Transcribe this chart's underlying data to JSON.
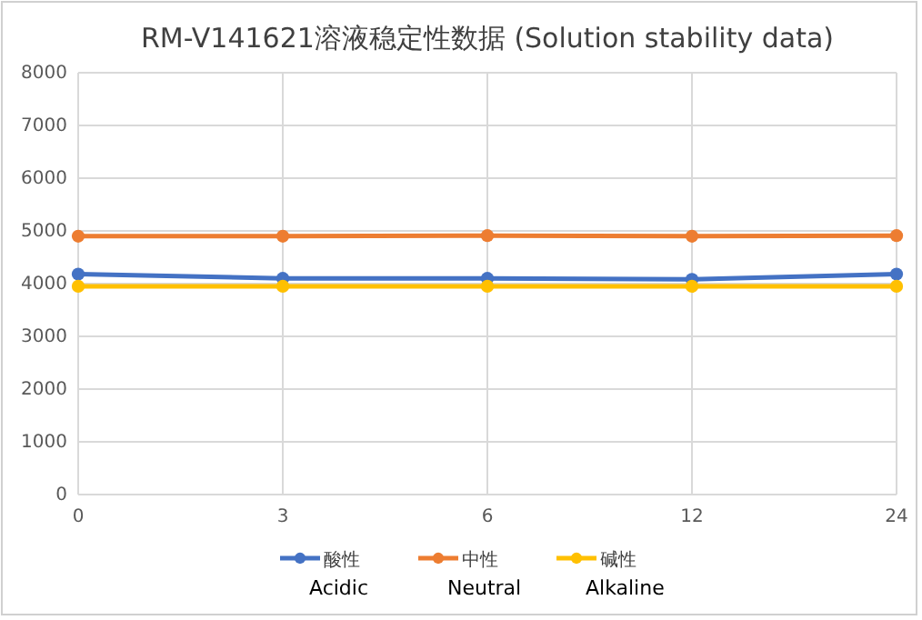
{
  "chart_data": {
    "type": "line",
    "title": "RM-V141621溶液稳定性数据 (Solution stability data)",
    "categories": [
      "0",
      "3",
      "6",
      "12",
      "24"
    ],
    "series": [
      {
        "name": "酸性\nAcidic",
        "color": "#4472c4",
        "values": [
          4180,
          4100,
          4100,
          4080,
          4180
        ]
      },
      {
        "name": "中性\nNeutral",
        "color": "#ed7d31",
        "values": [
          4900,
          4900,
          4910,
          4900,
          4910
        ]
      },
      {
        "name": "碱性\nAlkaline",
        "color": "#ffc000",
        "values": [
          3950,
          3950,
          3950,
          3950,
          3950
        ]
      }
    ],
    "ylim": [
      0,
      8000
    ],
    "yticks": [
      0,
      1000,
      2000,
      3000,
      4000,
      5000,
      6000,
      7000,
      8000
    ],
    "grid": true,
    "legend": "bottom",
    "marker": "circle",
    "line_style": "solid"
  }
}
